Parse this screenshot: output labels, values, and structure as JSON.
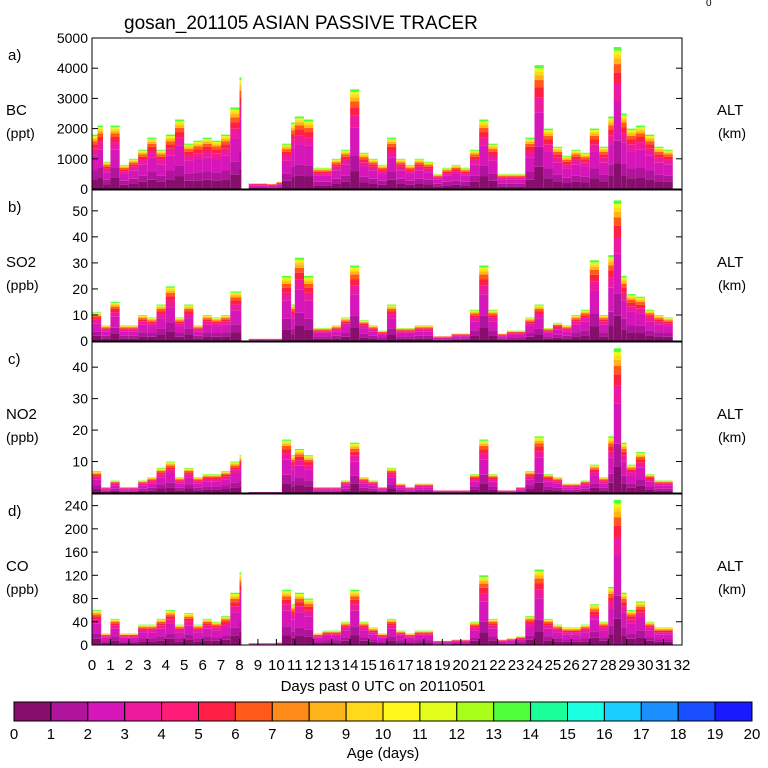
{
  "title": "gosan_201105 ASIAN PASSIVE TRACER",
  "corner_mark": "0",
  "x_axis": {
    "label": "Days past 0 UTC on 20110501",
    "range": [
      0,
      32
    ],
    "ticks": [
      "0",
      "1",
      "2",
      "3",
      "4",
      "5",
      "6",
      "7",
      "8",
      "9",
      "10",
      "11",
      "12",
      "13",
      "14",
      "15",
      "16",
      "17",
      "18",
      "19",
      "20",
      "21",
      "22",
      "23",
      "24",
      "25",
      "26",
      "27",
      "28",
      "29",
      "30",
      "31",
      "32"
    ]
  },
  "colorbar": {
    "label": "Age (days)",
    "ticks": [
      "0",
      "1",
      "2",
      "3",
      "4",
      "5",
      "6",
      "7",
      "8",
      "9",
      "10",
      "11",
      "12",
      "13",
      "14",
      "15",
      "16",
      "17",
      "18",
      "19",
      "20"
    ],
    "colors": [
      "#880e6e",
      "#b0139c",
      "#d616b9",
      "#ee1a9e",
      "#ff1c78",
      "#ff1f45",
      "#ff5a1a",
      "#ff8c1a",
      "#ffb41a",
      "#ffd91a",
      "#fff81a",
      "#e1ff1a",
      "#a8ff1a",
      "#4eff3a",
      "#1aff9a",
      "#1affe0",
      "#1acfff",
      "#1a8fff",
      "#1a4fff",
      "#1a1aff",
      "#6a1aff"
    ]
  },
  "chart_data": [
    {
      "type": "area",
      "panel_label": "a)",
      "species": "BC",
      "unit": "(ppt)",
      "right_label": "ALT",
      "right_unit": "(km)",
      "ylim": [
        0,
        5000
      ],
      "yticks": [
        "0",
        "1000",
        "2000",
        "3000",
        "4000",
        "5000"
      ],
      "x_peaks": [
        [
          0,
          1800
        ],
        [
          0.3,
          2100
        ],
        [
          0.6,
          900
        ],
        [
          1,
          2100
        ],
        [
          1.5,
          800
        ],
        [
          2,
          1000
        ],
        [
          2.5,
          1300
        ],
        [
          3,
          1700
        ],
        [
          3.5,
          1300
        ],
        [
          4,
          1800
        ],
        [
          4.5,
          2300
        ],
        [
          5,
          1500
        ],
        [
          5.5,
          1600
        ],
        [
          6,
          1700
        ],
        [
          6.5,
          1600
        ],
        [
          7,
          1800
        ],
        [
          7.5,
          2700
        ],
        [
          8,
          3700
        ],
        [
          8.1,
          0
        ],
        [
          8.5,
          200
        ],
        [
          9.5,
          180
        ],
        [
          10,
          250
        ],
        [
          10.3,
          1500
        ],
        [
          10.8,
          2200
        ],
        [
          11,
          2400
        ],
        [
          11.5,
          2300
        ],
        [
          12,
          700
        ],
        [
          12.5,
          700
        ],
        [
          13,
          1000
        ],
        [
          13.5,
          1300
        ],
        [
          14,
          3300
        ],
        [
          14.5,
          1200
        ],
        [
          15,
          1000
        ],
        [
          15.5,
          800
        ],
        [
          16,
          1700
        ],
        [
          16.5,
          1000
        ],
        [
          17,
          800
        ],
        [
          17.5,
          1000
        ],
        [
          18,
          900
        ],
        [
          18.5,
          500
        ],
        [
          19,
          700
        ],
        [
          19.5,
          800
        ],
        [
          20,
          700
        ],
        [
          20.5,
          1300
        ],
        [
          21,
          2300
        ],
        [
          21.5,
          1500
        ],
        [
          22,
          500
        ],
        [
          22.5,
          500
        ],
        [
          23,
          500
        ],
        [
          23.5,
          1700
        ],
        [
          24,
          4100
        ],
        [
          24.5,
          2000
        ],
        [
          25,
          1400
        ],
        [
          25.5,
          1100
        ],
        [
          26,
          1300
        ],
        [
          26.5,
          1200
        ],
        [
          27,
          2000
        ],
        [
          27.5,
          1400
        ],
        [
          28,
          2400
        ],
        [
          28.3,
          4700
        ],
        [
          28.7,
          2500
        ],
        [
          29,
          2000
        ],
        [
          29.5,
          2100
        ],
        [
          30,
          1800
        ],
        [
          30.5,
          1400
        ],
        [
          31,
          1300
        ]
      ]
    },
    {
      "type": "area",
      "panel_label": "b)",
      "species": "SO2",
      "unit": "(ppb)",
      "right_label": "ALT",
      "right_unit": "(km)",
      "ylim": [
        0,
        58
      ],
      "yticks": [
        "0",
        "10",
        "20",
        "30",
        "40",
        "50"
      ],
      "x_peaks": [
        [
          0,
          11
        ],
        [
          0.5,
          6
        ],
        [
          1,
          15
        ],
        [
          1.5,
          6
        ],
        [
          2,
          6
        ],
        [
          2.5,
          10
        ],
        [
          3,
          9
        ],
        [
          3.5,
          14
        ],
        [
          4,
          21
        ],
        [
          4.5,
          9
        ],
        [
          5,
          14
        ],
        [
          5.5,
          6
        ],
        [
          6,
          10
        ],
        [
          6.5,
          9
        ],
        [
          7,
          10
        ],
        [
          7.5,
          19
        ],
        [
          8,
          19
        ],
        [
          8.1,
          0
        ],
        [
          8.5,
          1
        ],
        [
          9.5,
          1
        ],
        [
          10,
          1
        ],
        [
          10.3,
          25
        ],
        [
          10.8,
          14
        ],
        [
          11,
          32
        ],
        [
          11.5,
          25
        ],
        [
          12,
          5
        ],
        [
          12.5,
          5
        ],
        [
          13,
          6
        ],
        [
          13.5,
          9
        ],
        [
          14,
          29
        ],
        [
          14.5,
          8
        ],
        [
          15,
          6
        ],
        [
          15.5,
          4
        ],
        [
          16,
          14
        ],
        [
          16.5,
          5
        ],
        [
          17,
          5
        ],
        [
          17.5,
          6
        ],
        [
          18,
          6
        ],
        [
          18.5,
          2
        ],
        [
          19,
          2
        ],
        [
          19.5,
          3
        ],
        [
          20,
          3
        ],
        [
          20.5,
          12
        ],
        [
          21,
          29
        ],
        [
          21.5,
          12
        ],
        [
          22,
          3
        ],
        [
          22.5,
          4
        ],
        [
          23,
          4
        ],
        [
          23.5,
          9
        ],
        [
          24,
          14
        ],
        [
          24.5,
          5
        ],
        [
          25,
          7
        ],
        [
          25.5,
          6
        ],
        [
          26,
          10
        ],
        [
          26.5,
          12
        ],
        [
          27,
          31
        ],
        [
          27.5,
          10
        ],
        [
          28,
          33
        ],
        [
          28.3,
          54
        ],
        [
          28.7,
          25
        ],
        [
          29,
          18
        ],
        [
          29.5,
          17
        ],
        [
          30,
          12
        ],
        [
          30.5,
          10
        ],
        [
          31,
          9
        ]
      ]
    },
    {
      "type": "area",
      "panel_label": "c)",
      "species": "NO2",
      "unit": "(ppb)",
      "right_label": "ALT",
      "right_unit": "(km)",
      "ylim": [
        0,
        48
      ],
      "yticks": [
        "10",
        "20",
        "30",
        "40"
      ],
      "x_peaks": [
        [
          0,
          7
        ],
        [
          0.5,
          2
        ],
        [
          1,
          4
        ],
        [
          1.5,
          2
        ],
        [
          2,
          2
        ],
        [
          2.5,
          4
        ],
        [
          3,
          5
        ],
        [
          3.5,
          8
        ],
        [
          4,
          10
        ],
        [
          4.5,
          5
        ],
        [
          5,
          8
        ],
        [
          5.5,
          5
        ],
        [
          6,
          6
        ],
        [
          6.5,
          6
        ],
        [
          7,
          7
        ],
        [
          7.5,
          10
        ],
        [
          8,
          12
        ],
        [
          8.1,
          0
        ],
        [
          8.5,
          0.5
        ],
        [
          9.5,
          0.5
        ],
        [
          10,
          0.5
        ],
        [
          10.3,
          17
        ],
        [
          10.8,
          12
        ],
        [
          11,
          14
        ],
        [
          11.5,
          12
        ],
        [
          12,
          2
        ],
        [
          12.5,
          2
        ],
        [
          13,
          2
        ],
        [
          13.5,
          4
        ],
        [
          14,
          16
        ],
        [
          14.5,
          5
        ],
        [
          15,
          4
        ],
        [
          15.5,
          2
        ],
        [
          16,
          8
        ],
        [
          16.5,
          3
        ],
        [
          17,
          2
        ],
        [
          17.5,
          3
        ],
        [
          18,
          3
        ],
        [
          18.5,
          1
        ],
        [
          19,
          1
        ],
        [
          19.5,
          1
        ],
        [
          20,
          1
        ],
        [
          20.5,
          6
        ],
        [
          21,
          17
        ],
        [
          21.5,
          6
        ],
        [
          22,
          1
        ],
        [
          22.5,
          1
        ],
        [
          23,
          2
        ],
        [
          23.5,
          7
        ],
        [
          24,
          18
        ],
        [
          24.5,
          6
        ],
        [
          25,
          5
        ],
        [
          25.5,
          3
        ],
        [
          26,
          3
        ],
        [
          26.5,
          4
        ],
        [
          27,
          9
        ],
        [
          27.5,
          5
        ],
        [
          28,
          18
        ],
        [
          28.3,
          46
        ],
        [
          28.7,
          16
        ],
        [
          29,
          9
        ],
        [
          29.5,
          13
        ],
        [
          30,
          6
        ],
        [
          30.5,
          4
        ],
        [
          31,
          4
        ]
      ]
    },
    {
      "type": "area",
      "panel_label": "d)",
      "species": "CO",
      "unit": "(ppb)",
      "right_label": "ALT",
      "right_unit": "(km)",
      "ylim": [
        0,
        260
      ],
      "yticks": [
        "0",
        "40",
        "80",
        "120",
        "160",
        "200",
        "240"
      ],
      "x_peaks": [
        [
          0,
          60
        ],
        [
          0.5,
          20
        ],
        [
          1,
          45
        ],
        [
          1.5,
          20
        ],
        [
          2,
          20
        ],
        [
          2.5,
          35
        ],
        [
          3,
          35
        ],
        [
          3.5,
          45
        ],
        [
          4,
          60
        ],
        [
          4.5,
          35
        ],
        [
          5,
          55
        ],
        [
          5.5,
          35
        ],
        [
          6,
          45
        ],
        [
          6.5,
          40
        ],
        [
          7,
          50
        ],
        [
          7.5,
          90
        ],
        [
          8,
          125
        ],
        [
          8.1,
          0
        ],
        [
          8.5,
          4
        ],
        [
          9.5,
          4
        ],
        [
          10,
          5
        ],
        [
          10.3,
          95
        ],
        [
          10.8,
          70
        ],
        [
          11,
          90
        ],
        [
          11.5,
          80
        ],
        [
          12,
          20
        ],
        [
          12.5,
          25
        ],
        [
          13,
          25
        ],
        [
          13.5,
          40
        ],
        [
          14,
          95
        ],
        [
          14.5,
          40
        ],
        [
          15,
          30
        ],
        [
          15.5,
          20
        ],
        [
          16,
          45
        ],
        [
          16.5,
          25
        ],
        [
          17,
          20
        ],
        [
          17.5,
          25
        ],
        [
          18,
          25
        ],
        [
          18.5,
          8
        ],
        [
          19,
          8
        ],
        [
          19.5,
          10
        ],
        [
          20,
          10
        ],
        [
          20.5,
          40
        ],
        [
          21,
          120
        ],
        [
          21.5,
          45
        ],
        [
          22,
          10
        ],
        [
          22.5,
          12
        ],
        [
          23,
          15
        ],
        [
          23.5,
          50
        ],
        [
          24,
          130
        ],
        [
          24.5,
          45
        ],
        [
          25,
          35
        ],
        [
          25.5,
          30
        ],
        [
          26,
          30
        ],
        [
          26.5,
          35
        ],
        [
          27,
          70
        ],
        [
          27.5,
          40
        ],
        [
          28,
          100
        ],
        [
          28.3,
          250
        ],
        [
          28.7,
          90
        ],
        [
          29,
          60
        ],
        [
          29.5,
          75
        ],
        [
          30,
          40
        ],
        [
          30.5,
          30
        ],
        [
          31,
          30
        ]
      ]
    }
  ]
}
